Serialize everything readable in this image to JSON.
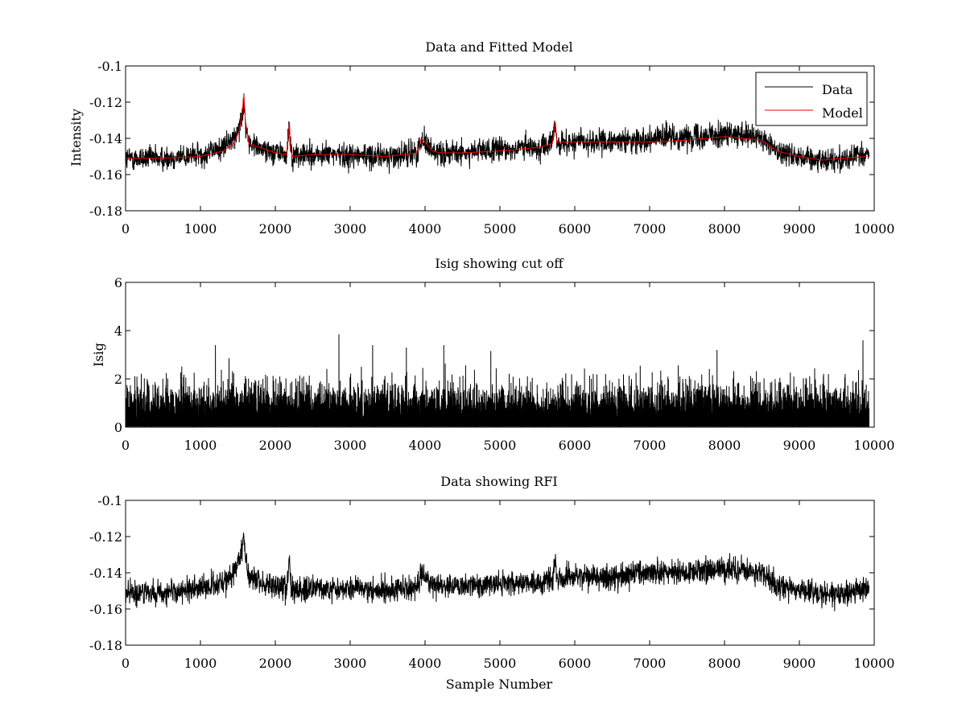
{
  "chart_data": [
    {
      "type": "line",
      "title": "Data and Fitted Model",
      "xlabel": "",
      "ylabel": "Intensity",
      "xlim": [
        0,
        10000
      ],
      "ylim": [
        -0.18,
        -0.1
      ],
      "xticks": [
        0,
        1000,
        2000,
        3000,
        4000,
        5000,
        6000,
        7000,
        8000,
        9000,
        10000
      ],
      "yticks": [
        -0.18,
        -0.16,
        -0.14,
        -0.12,
        -0.1
      ],
      "legend_position": "top-right",
      "grid": false,
      "series": [
        {
          "name": "Data",
          "color": "#000000",
          "noisy": true,
          "noise_amplitude": 0.006,
          "x": [
            0,
            500,
            1000,
            1300,
            1450,
            1520,
            1560,
            1580,
            1600,
            1650,
            2000,
            2150,
            2190,
            2200,
            2230,
            2500,
            3000,
            3500,
            3900,
            3950,
            4000,
            4100,
            4200,
            4500,
            5000,
            5500,
            5700,
            5740,
            5760,
            5800,
            6000,
            6500,
            7000,
            7500,
            8000,
            8500,
            8700,
            9000,
            9300,
            9600,
            9900
          ],
          "y": [
            -0.151,
            -0.151,
            -0.149,
            -0.145,
            -0.14,
            -0.132,
            -0.126,
            -0.12,
            -0.13,
            -0.143,
            -0.148,
            -0.149,
            -0.133,
            -0.145,
            -0.15,
            -0.149,
            -0.149,
            -0.15,
            -0.148,
            -0.14,
            -0.142,
            -0.147,
            -0.148,
            -0.148,
            -0.146,
            -0.145,
            -0.143,
            -0.133,
            -0.142,
            -0.143,
            -0.142,
            -0.142,
            -0.14,
            -0.139,
            -0.138,
            -0.14,
            -0.147,
            -0.15,
            -0.152,
            -0.151,
            -0.149
          ]
        },
        {
          "name": "Model",
          "color": "#ff0000",
          "noisy": false,
          "x": [
            0,
            500,
            1000,
            1300,
            1450,
            1520,
            1560,
            1580,
            1600,
            1650,
            2000,
            2150,
            2190,
            2200,
            2230,
            2500,
            3000,
            3500,
            3900,
            3950,
            4000,
            4100,
            4200,
            4500,
            5000,
            5500,
            5700,
            5740,
            5760,
            5800,
            6000,
            6500,
            7000,
            7500,
            8000,
            8500,
            8700,
            9000,
            9300,
            9600,
            9900
          ],
          "y": [
            -0.151,
            -0.151,
            -0.15,
            -0.147,
            -0.143,
            -0.135,
            -0.125,
            -0.116,
            -0.13,
            -0.143,
            -0.148,
            -0.149,
            -0.131,
            -0.146,
            -0.15,
            -0.149,
            -0.149,
            -0.15,
            -0.148,
            -0.14,
            -0.142,
            -0.147,
            -0.148,
            -0.148,
            -0.147,
            -0.145,
            -0.143,
            -0.131,
            -0.142,
            -0.142,
            -0.142,
            -0.142,
            -0.142,
            -0.141,
            -0.139,
            -0.141,
            -0.147,
            -0.15,
            -0.152,
            -0.151,
            -0.15
          ]
        }
      ]
    },
    {
      "type": "line",
      "title": "Isig showing cut off",
      "xlabel": "",
      "ylabel": "Isig",
      "xlim": [
        0,
        10000
      ],
      "ylim": [
        0,
        6
      ],
      "xticks": [
        0,
        1000,
        2000,
        3000,
        4000,
        5000,
        6000,
        7000,
        8000,
        9000,
        10000
      ],
      "yticks": [
        0,
        2,
        4,
        6
      ],
      "grid": false,
      "series": [
        {
          "color": "#000000",
          "noisy": true,
          "baseline": 0.8,
          "spread": 0.8,
          "peak_x": [
            1200,
            2850,
            3300,
            3750,
            4250,
            7900,
            9850
          ],
          "peak_y": [
            3.4,
            3.85,
            3.4,
            3.3,
            3.4,
            3.2,
            3.6
          ]
        }
      ]
    },
    {
      "type": "line",
      "title": "Data showing RFI",
      "xlabel": "Sample Number",
      "ylabel": "",
      "xlim": [
        0,
        10000
      ],
      "ylim": [
        -0.18,
        -0.1
      ],
      "xticks": [
        0,
        1000,
        2000,
        3000,
        4000,
        5000,
        6000,
        7000,
        8000,
        9000,
        10000
      ],
      "yticks": [
        -0.18,
        -0.16,
        -0.14,
        -0.12,
        -0.1
      ],
      "grid": false,
      "series": [
        {
          "color": "#000000",
          "noisy": true,
          "noise_amplitude": 0.006,
          "x": [
            0,
            500,
            1000,
            1300,
            1450,
            1520,
            1560,
            1580,
            1600,
            1650,
            2000,
            2150,
            2190,
            2200,
            2230,
            2500,
            3000,
            3500,
            3900,
            3950,
            4000,
            4100,
            4200,
            4500,
            5000,
            5500,
            5700,
            5740,
            5760,
            5800,
            6000,
            6500,
            7000,
            7500,
            8000,
            8500,
            8700,
            9000,
            9300,
            9600,
            9900
          ],
          "y": [
            -0.151,
            -0.151,
            -0.149,
            -0.145,
            -0.14,
            -0.132,
            -0.126,
            -0.12,
            -0.13,
            -0.143,
            -0.148,
            -0.149,
            -0.133,
            -0.145,
            -0.15,
            -0.149,
            -0.149,
            -0.15,
            -0.148,
            -0.14,
            -0.142,
            -0.147,
            -0.148,
            -0.148,
            -0.146,
            -0.145,
            -0.143,
            -0.133,
            -0.142,
            -0.143,
            -0.142,
            -0.142,
            -0.14,
            -0.139,
            -0.138,
            -0.14,
            -0.147,
            -0.15,
            -0.152,
            -0.151,
            -0.149
          ]
        }
      ]
    }
  ]
}
